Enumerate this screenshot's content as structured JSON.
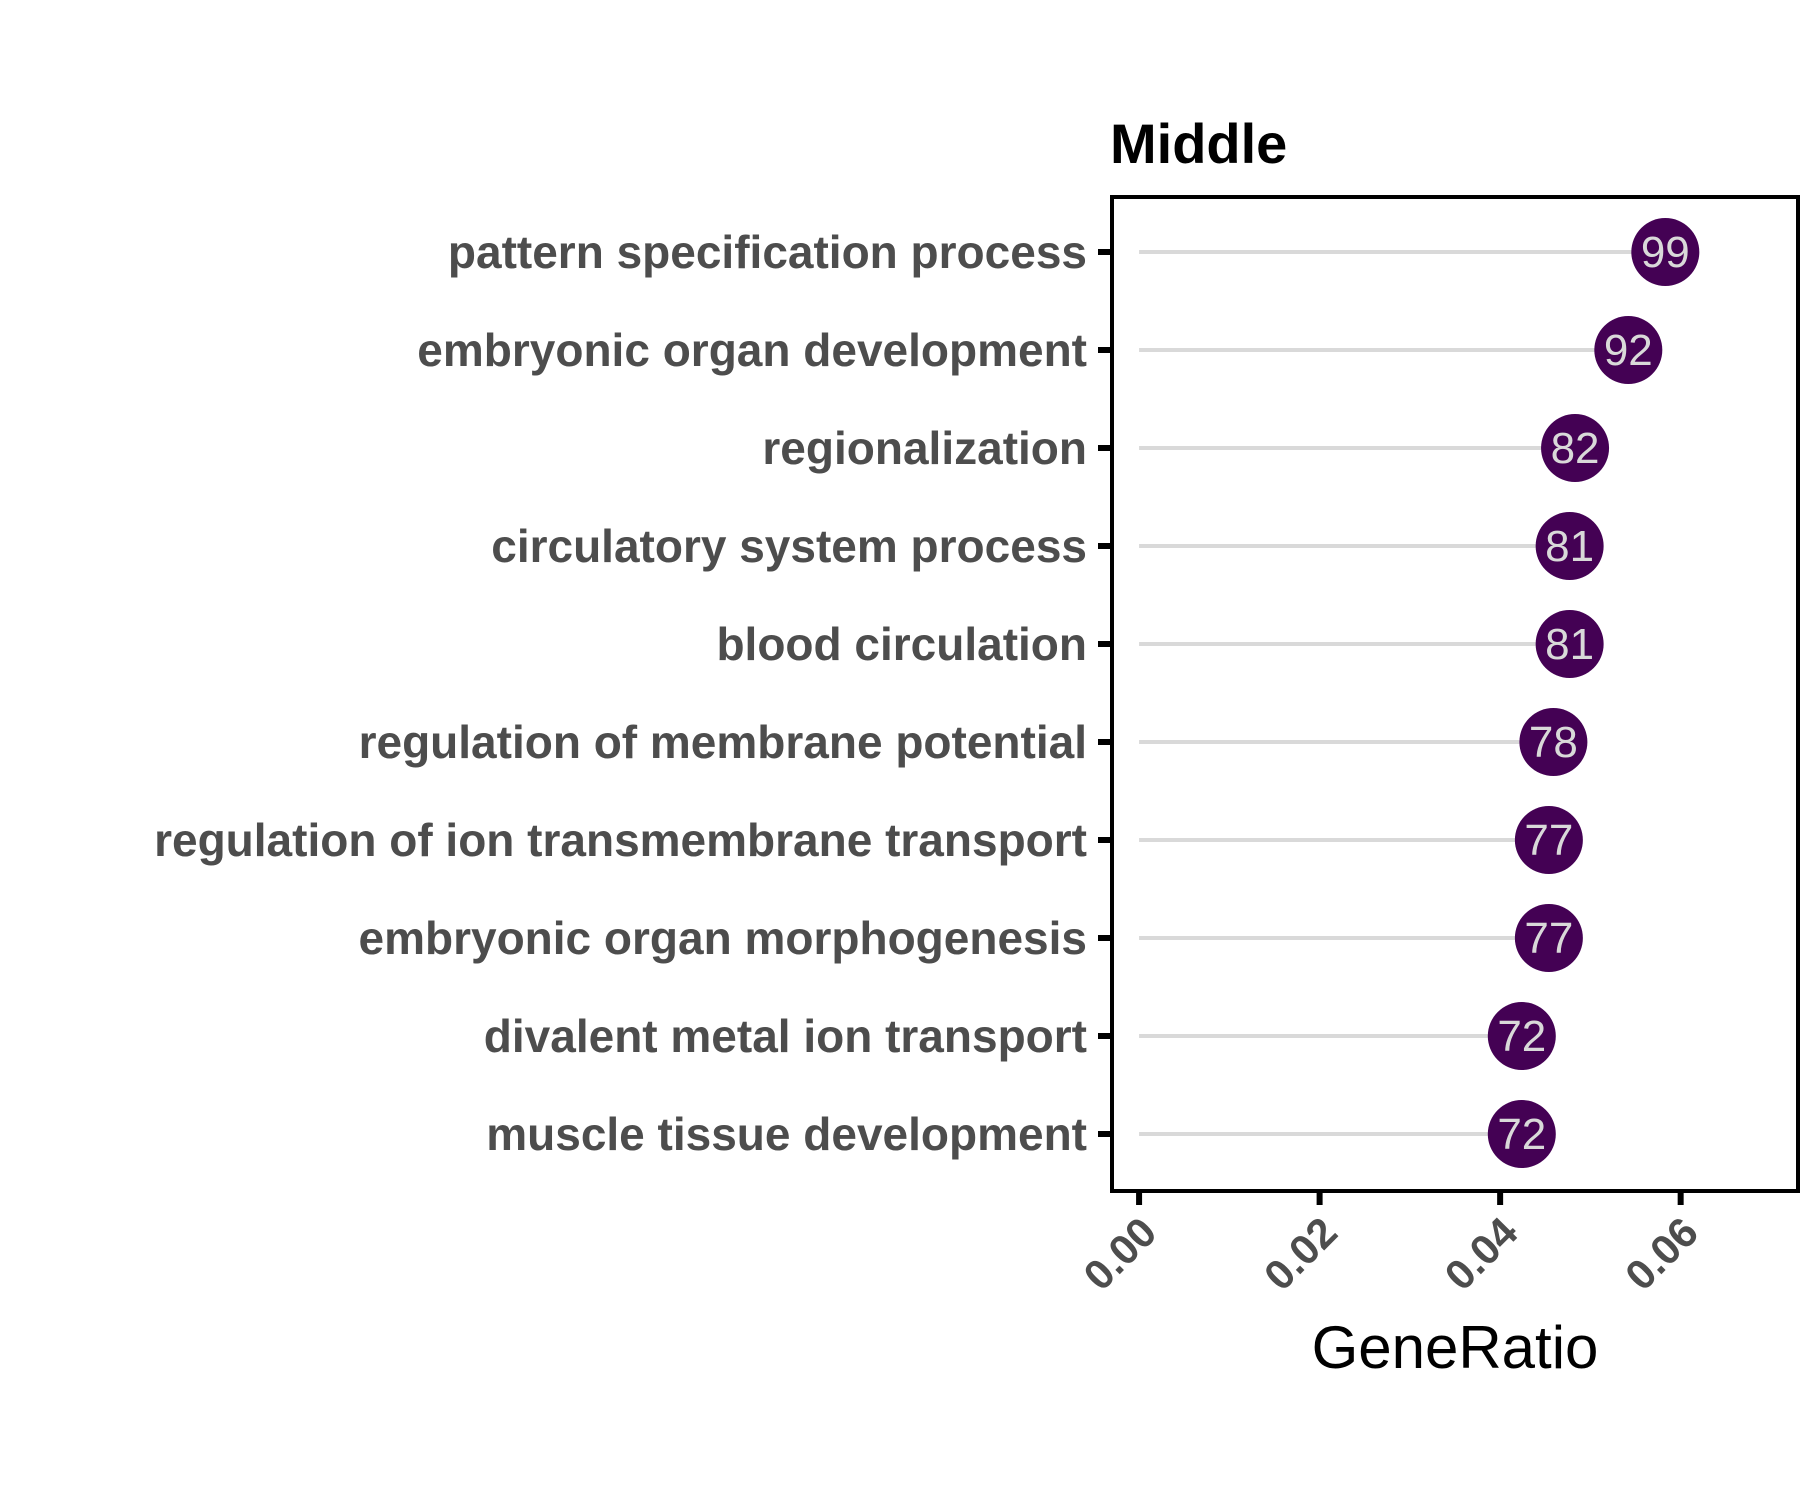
{
  "chart_data": {
    "type": "scatter",
    "style": "lollipop",
    "title": "Middle",
    "xlabel": "GeneRatio",
    "ylabel": "",
    "xlim": [
      -0.003,
      0.073
    ],
    "x_ticks": [
      "0.00",
      "0.02",
      "0.04",
      "0.06"
    ],
    "x_tick_values": [
      0.0,
      0.02,
      0.04,
      0.06
    ],
    "categories": [
      "pattern specification process",
      "embryonic organ development",
      "regionalization",
      "circulatory system process",
      "blood circulation",
      "regulation of membrane potential",
      "regulation of ion transmembrane transport",
      "embryonic organ morphogenesis",
      "divalent metal ion transport",
      "muscle tissue development"
    ],
    "values": [
      0.0583,
      0.0542,
      0.0483,
      0.0477,
      0.0477,
      0.0459,
      0.0454,
      0.0454,
      0.0424,
      0.0424
    ],
    "counts": [
      "99",
      "92",
      "82",
      "81",
      "81",
      "78",
      "77",
      "77",
      "72",
      "72"
    ],
    "grid": false,
    "legend": "none",
    "colors": {
      "point": "#440154",
      "stem": "#d9d9d9",
      "count_text": "#d9d9d9",
      "axis": "#000000",
      "label_text": "#4d4d4d"
    }
  }
}
